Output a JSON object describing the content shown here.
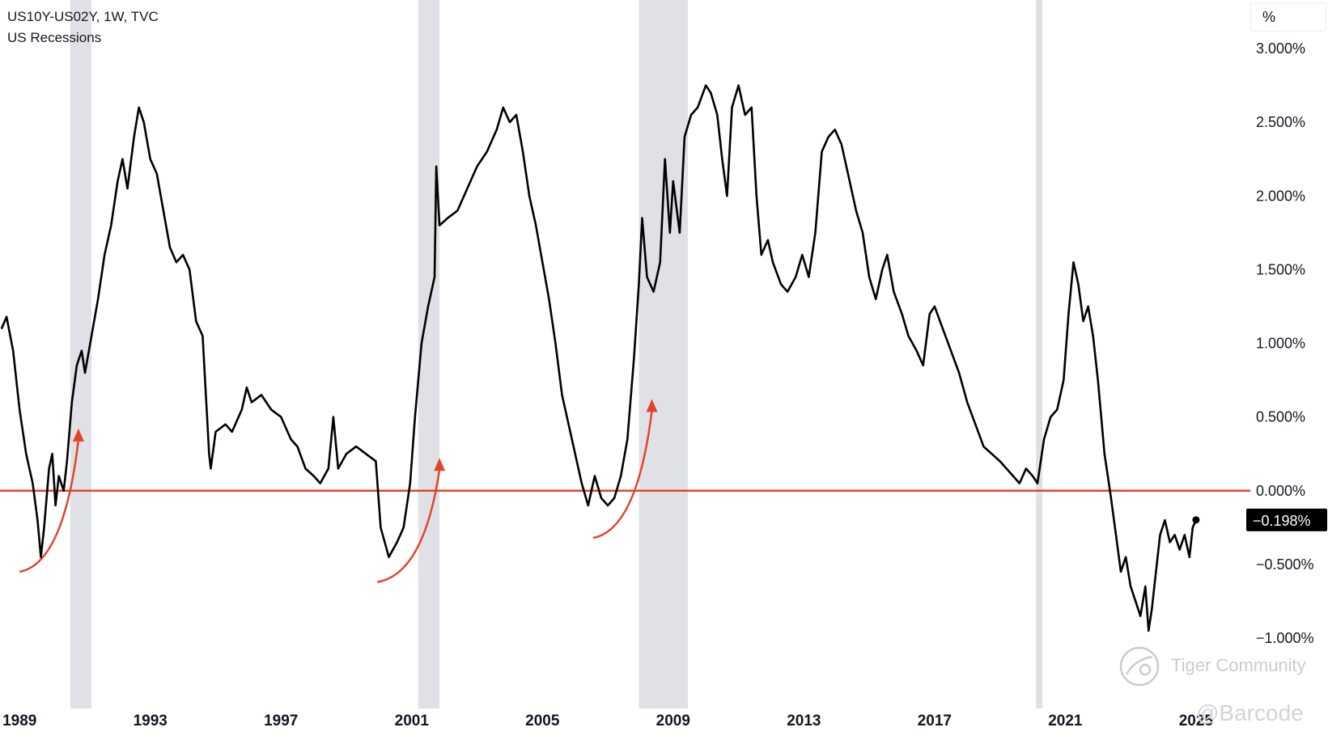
{
  "legend": {
    "symbol": "US10Y-US02Y, 1W, TVC",
    "overlay": "US Recessions"
  },
  "unit_label": "%",
  "watermarks": {
    "community": "Tiger Community",
    "handle": "@Barcode"
  },
  "colors": {
    "line": "#000000",
    "zero_line": "#e0452a",
    "arrow": "#e0452a",
    "recession": "#dfe1e6",
    "last_value_bg": "#000000",
    "last_value_text": "#ffffff"
  },
  "chart_data": {
    "type": "line",
    "title": "US10Y-US02Y, 1W, TVC",
    "xlabel": "",
    "ylabel": "%",
    "xlim": [
      1988.4,
      2025.3
    ],
    "ylim": [
      -1.25,
      3.35
    ],
    "x_ticks": [
      "1989",
      "1993",
      "1997",
      "2001",
      "2005",
      "2009",
      "2013",
      "2017",
      "2021",
      "2025"
    ],
    "y_ticks": [
      "3.000%",
      "2.500%",
      "2.000%",
      "1.500%",
      "1.000%",
      "0.500%",
      "0.000%",
      "−0.500%",
      "−1.000%"
    ],
    "y_tick_values": [
      3.0,
      2.5,
      2.0,
      1.5,
      1.0,
      0.5,
      0.0,
      -0.5,
      -1.0
    ],
    "last_value": -0.198,
    "last_value_label": "−0.198%",
    "reference_line": 0.0,
    "recessions": [
      [
        1990.55,
        1991.2
      ],
      [
        2001.2,
        2001.85
      ],
      [
        2007.95,
        2009.45
      ],
      [
        2020.1,
        2020.3
      ]
    ],
    "arrows": [
      {
        "from": [
          1989.0,
          -0.55
        ],
        "to": [
          1990.8,
          0.4
        ]
      },
      {
        "from": [
          1999.95,
          -0.62
        ],
        "to": [
          2001.85,
          0.2
        ]
      },
      {
        "from": [
          2006.55,
          -0.32
        ],
        "to": [
          2008.35,
          0.6
        ]
      }
    ],
    "series": [
      {
        "values": [
          [
            1988.45,
            1.1
          ],
          [
            1988.6,
            1.18
          ],
          [
            1988.8,
            0.95
          ],
          [
            1989.0,
            0.55
          ],
          [
            1989.2,
            0.25
          ],
          [
            1989.4,
            0.05
          ],
          [
            1989.55,
            -0.2
          ],
          [
            1989.65,
            -0.45
          ],
          [
            1989.75,
            -0.25
          ],
          [
            1989.9,
            0.15
          ],
          [
            1990.0,
            0.25
          ],
          [
            1990.1,
            -0.1
          ],
          [
            1990.2,
            0.1
          ],
          [
            1990.35,
            0.0
          ],
          [
            1990.45,
            0.2
          ],
          [
            1990.6,
            0.6
          ],
          [
            1990.75,
            0.85
          ],
          [
            1990.9,
            0.95
          ],
          [
            1991.0,
            0.8
          ],
          [
            1991.2,
            1.05
          ],
          [
            1991.4,
            1.3
          ],
          [
            1991.6,
            1.6
          ],
          [
            1991.8,
            1.8
          ],
          [
            1992.0,
            2.1
          ],
          [
            1992.15,
            2.25
          ],
          [
            1992.3,
            2.05
          ],
          [
            1992.5,
            2.4
          ],
          [
            1992.65,
            2.6
          ],
          [
            1992.8,
            2.5
          ],
          [
            1993.0,
            2.25
          ],
          [
            1993.2,
            2.15
          ],
          [
            1993.4,
            1.9
          ],
          [
            1993.6,
            1.65
          ],
          [
            1993.8,
            1.55
          ],
          [
            1994.0,
            1.6
          ],
          [
            1994.2,
            1.5
          ],
          [
            1994.4,
            1.15
          ],
          [
            1994.6,
            1.05
          ],
          [
            1994.8,
            0.25
          ],
          [
            1994.85,
            0.15
          ],
          [
            1995.0,
            0.4
          ],
          [
            1995.3,
            0.45
          ],
          [
            1995.5,
            0.4
          ],
          [
            1995.8,
            0.55
          ],
          [
            1995.95,
            0.7
          ],
          [
            1996.1,
            0.6
          ],
          [
            1996.4,
            0.65
          ],
          [
            1996.7,
            0.55
          ],
          [
            1997.0,
            0.5
          ],
          [
            1997.3,
            0.35
          ],
          [
            1997.5,
            0.3
          ],
          [
            1997.75,
            0.15
          ],
          [
            1998.0,
            0.1
          ],
          [
            1998.2,
            0.05
          ],
          [
            1998.45,
            0.15
          ],
          [
            1998.6,
            0.5
          ],
          [
            1998.75,
            0.15
          ],
          [
            1999.0,
            0.25
          ],
          [
            1999.3,
            0.3
          ],
          [
            1999.6,
            0.25
          ],
          [
            1999.9,
            0.2
          ],
          [
            2000.05,
            -0.25
          ],
          [
            2000.3,
            -0.45
          ],
          [
            2000.55,
            -0.35
          ],
          [
            2000.75,
            -0.25
          ],
          [
            2000.95,
            0.05
          ],
          [
            2001.1,
            0.5
          ],
          [
            2001.3,
            1.0
          ],
          [
            2001.5,
            1.25
          ],
          [
            2001.7,
            1.45
          ],
          [
            2001.75,
            2.2
          ],
          [
            2001.85,
            1.8
          ],
          [
            2002.1,
            1.85
          ],
          [
            2002.4,
            1.9
          ],
          [
            2002.7,
            2.05
          ],
          [
            2003.0,
            2.2
          ],
          [
            2003.3,
            2.3
          ],
          [
            2003.6,
            2.45
          ],
          [
            2003.8,
            2.6
          ],
          [
            2004.0,
            2.5
          ],
          [
            2004.2,
            2.55
          ],
          [
            2004.4,
            2.3
          ],
          [
            2004.6,
            2.0
          ],
          [
            2004.8,
            1.8
          ],
          [
            2005.0,
            1.55
          ],
          [
            2005.2,
            1.3
          ],
          [
            2005.4,
            1.0
          ],
          [
            2005.6,
            0.65
          ],
          [
            2005.8,
            0.45
          ],
          [
            2006.0,
            0.25
          ],
          [
            2006.2,
            0.05
          ],
          [
            2006.4,
            -0.1
          ],
          [
            2006.6,
            0.1
          ],
          [
            2006.8,
            -0.05
          ],
          [
            2007.0,
            -0.1
          ],
          [
            2007.2,
            -0.05
          ],
          [
            2007.4,
            0.1
          ],
          [
            2007.6,
            0.35
          ],
          [
            2007.8,
            0.9
          ],
          [
            2007.95,
            1.4
          ],
          [
            2008.05,
            1.85
          ],
          [
            2008.2,
            1.45
          ],
          [
            2008.4,
            1.35
          ],
          [
            2008.6,
            1.55
          ],
          [
            2008.75,
            2.25
          ],
          [
            2008.9,
            1.75
          ],
          [
            2009.0,
            2.1
          ],
          [
            2009.2,
            1.75
          ],
          [
            2009.35,
            2.4
          ],
          [
            2009.55,
            2.55
          ],
          [
            2009.75,
            2.6
          ],
          [
            2010.0,
            2.75
          ],
          [
            2010.15,
            2.7
          ],
          [
            2010.35,
            2.55
          ],
          [
            2010.5,
            2.25
          ],
          [
            2010.65,
            2.0
          ],
          [
            2010.8,
            2.6
          ],
          [
            2011.0,
            2.75
          ],
          [
            2011.2,
            2.55
          ],
          [
            2011.4,
            2.6
          ],
          [
            2011.55,
            2.0
          ],
          [
            2011.7,
            1.6
          ],
          [
            2011.9,
            1.7
          ],
          [
            2012.05,
            1.55
          ],
          [
            2012.3,
            1.4
          ],
          [
            2012.5,
            1.35
          ],
          [
            2012.75,
            1.45
          ],
          [
            2012.95,
            1.6
          ],
          [
            2013.15,
            1.45
          ],
          [
            2013.35,
            1.75
          ],
          [
            2013.55,
            2.3
          ],
          [
            2013.75,
            2.4
          ],
          [
            2013.95,
            2.45
          ],
          [
            2014.15,
            2.35
          ],
          [
            2014.4,
            2.1
          ],
          [
            2014.6,
            1.9
          ],
          [
            2014.8,
            1.75
          ],
          [
            2015.0,
            1.45
          ],
          [
            2015.2,
            1.3
          ],
          [
            2015.4,
            1.5
          ],
          [
            2015.55,
            1.6
          ],
          [
            2015.75,
            1.35
          ],
          [
            2016.0,
            1.2
          ],
          [
            2016.2,
            1.05
          ],
          [
            2016.45,
            0.95
          ],
          [
            2016.65,
            0.85
          ],
          [
            2016.85,
            1.2
          ],
          [
            2017.0,
            1.25
          ],
          [
            2017.25,
            1.1
          ],
          [
            2017.5,
            0.95
          ],
          [
            2017.75,
            0.8
          ],
          [
            2018.0,
            0.6
          ],
          [
            2018.25,
            0.45
          ],
          [
            2018.5,
            0.3
          ],
          [
            2018.75,
            0.25
          ],
          [
            2019.0,
            0.2
          ],
          [
            2019.2,
            0.15
          ],
          [
            2019.4,
            0.1
          ],
          [
            2019.6,
            0.05
          ],
          [
            2019.8,
            0.15
          ],
          [
            2020.0,
            0.1
          ],
          [
            2020.15,
            0.05
          ],
          [
            2020.35,
            0.35
          ],
          [
            2020.55,
            0.5
          ],
          [
            2020.75,
            0.55
          ],
          [
            2020.95,
            0.75
          ],
          [
            2021.1,
            1.2
          ],
          [
            2021.25,
            1.55
          ],
          [
            2021.4,
            1.4
          ],
          [
            2021.55,
            1.15
          ],
          [
            2021.7,
            1.25
          ],
          [
            2021.85,
            1.05
          ],
          [
            2022.0,
            0.75
          ],
          [
            2022.1,
            0.5
          ],
          [
            2022.2,
            0.25
          ],
          [
            2022.3,
            0.1
          ],
          [
            2022.4,
            -0.05
          ],
          [
            2022.55,
            -0.3
          ],
          [
            2022.7,
            -0.55
          ],
          [
            2022.85,
            -0.45
          ],
          [
            2023.0,
            -0.65
          ],
          [
            2023.15,
            -0.75
          ],
          [
            2023.3,
            -0.85
          ],
          [
            2023.45,
            -0.65
          ],
          [
            2023.55,
            -0.95
          ],
          [
            2023.65,
            -0.8
          ],
          [
            2023.75,
            -0.6
          ],
          [
            2023.9,
            -0.3
          ],
          [
            2024.05,
            -0.2
          ],
          [
            2024.2,
            -0.35
          ],
          [
            2024.35,
            -0.3
          ],
          [
            2024.5,
            -0.4
          ],
          [
            2024.65,
            -0.3
          ],
          [
            2024.8,
            -0.45
          ],
          [
            2024.9,
            -0.25
          ],
          [
            2025.0,
            -0.198
          ]
        ]
      }
    ]
  }
}
